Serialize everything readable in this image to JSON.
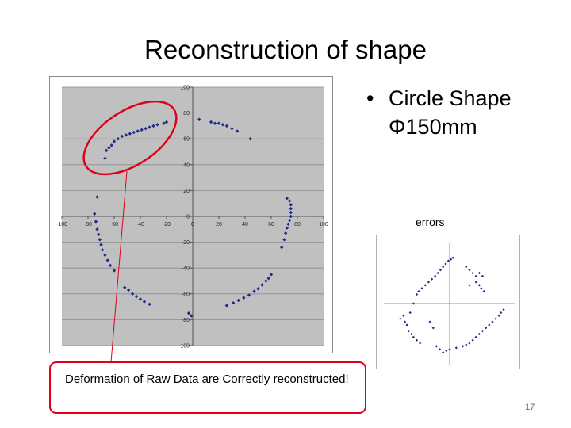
{
  "slide": {
    "title": "Reconstruction of shape",
    "bullet": {
      "symbol": "•",
      "line1": "Circle Shape",
      "line2": "Φ150mm"
    },
    "errors_label": "errors",
    "callout_text": "Deformation of Raw Data are Correctly reconstructed!",
    "page_number": "17",
    "colors": {
      "highlight": "#e0001b",
      "marker": "#1f2a8c",
      "plot_bg": "#c0c0c0"
    }
  },
  "chart_data": [
    {
      "type": "scatter",
      "title": "",
      "xlabel": "",
      "ylabel": "",
      "xlim": [
        -100,
        100
      ],
      "ylim": [
        -100,
        100
      ],
      "xticks": [
        -100,
        -80,
        -60,
        -40,
        -20,
        0,
        20,
        40,
        60,
        80,
        100
      ],
      "yticks": [
        -100,
        -80,
        -60,
        -40,
        -20,
        0,
        20,
        40,
        60,
        80,
        100
      ],
      "grid": true,
      "series": [
        {
          "x": [
            -20,
            -22,
            -27,
            -30,
            -33,
            -36,
            -39,
            -42,
            -45,
            -48,
            -51,
            -54,
            -57,
            -60,
            -62,
            -64,
            -66,
            -67,
            5,
            14,
            17,
            20,
            23,
            26,
            30,
            34,
            44,
            -73,
            -75,
            -74,
            -73,
            -72,
            -71,
            -70,
            -69,
            -67,
            -65,
            -63,
            -60,
            -52,
            -49,
            -46,
            -43,
            -40,
            -37,
            -33,
            -3,
            -1,
            72,
            74,
            75,
            75,
            75,
            75,
            74,
            73,
            72,
            71,
            70,
            68,
            60,
            58,
            56,
            53,
            50,
            47,
            43,
            39,
            35,
            31,
            26
          ],
          "y": [
            73,
            72,
            71,
            70,
            69,
            68,
            67,
            66,
            65,
            64,
            63,
            62,
            60,
            58,
            55,
            53,
            51,
            45,
            75,
            73,
            72,
            72,
            71,
            70,
            68,
            66,
            60,
            15,
            2,
            -4,
            -10,
            -14,
            -18,
            -22,
            -26,
            -30,
            -34,
            -38,
            -42,
            -55,
            -57,
            -60,
            -62,
            -64,
            -66,
            -68,
            -75,
            -77,
            14,
            12,
            9,
            6,
            3,
            0,
            -3,
            -6,
            -9,
            -13,
            -18,
            -24,
            -45,
            -48,
            -50,
            -53,
            -56,
            -58,
            -61,
            -63,
            -65,
            -67,
            -69
          ]
        }
      ]
    },
    {
      "type": "scatter",
      "title": "",
      "xlabel": "",
      "ylabel": "",
      "xlim": [
        -1,
        1
      ],
      "ylim": [
        -2,
        2
      ],
      "grid": false,
      "series": [
        {
          "x": [
            0.05,
            0.02,
            -0.02,
            -0.06,
            -0.1,
            -0.14,
            -0.18,
            -0.22,
            -0.27,
            -0.32,
            -0.37,
            -0.42,
            -0.47,
            -0.5,
            0.25,
            0.3,
            0.35,
            0.4,
            0.45,
            0.5,
            0.4,
            0.45,
            0.48,
            0.52,
            0.3,
            -0.55,
            -0.6,
            -0.7,
            -0.75,
            -0.68,
            -0.65,
            -0.62,
            -0.58,
            -0.55,
            -0.5,
            -0.45,
            -0.2,
            -0.15,
            -0.1,
            -0.05,
            0.0,
            0.1,
            0.2,
            0.25,
            0.3,
            0.35,
            0.4,
            0.45,
            0.5,
            0.55,
            0.6,
            0.65,
            0.7,
            0.75,
            0.78,
            0.82,
            -0.3,
            -0.25
          ],
          "y": [
            1.5,
            1.45,
            1.4,
            1.3,
            1.2,
            1.1,
            1.0,
            0.9,
            0.8,
            0.7,
            0.6,
            0.5,
            0.4,
            0.3,
            1.2,
            1.1,
            1.0,
            0.9,
            1.0,
            0.9,
            0.7,
            0.6,
            0.5,
            0.4,
            0.6,
            0.0,
            -0.3,
            -0.4,
            -0.5,
            -0.6,
            -0.7,
            -0.9,
            -1.0,
            -1.1,
            -1.2,
            -1.3,
            -1.4,
            -1.5,
            -1.6,
            -1.55,
            -1.5,
            -1.45,
            -1.4,
            -1.35,
            -1.3,
            -1.2,
            -1.1,
            -1.0,
            -0.9,
            -0.8,
            -0.7,
            -0.6,
            -0.5,
            -0.4,
            -0.3,
            -0.2,
            -0.6,
            -0.8
          ]
        }
      ]
    }
  ]
}
